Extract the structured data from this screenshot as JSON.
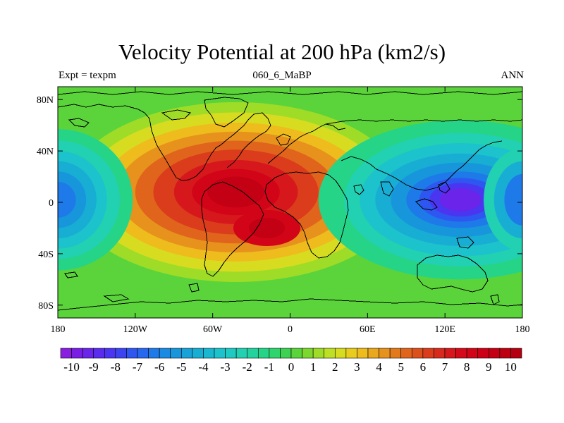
{
  "chart_data": {
    "type": "heatmap",
    "title": "Velocity Potential at 200 hPa (km2/s)",
    "subtitle_left": "Expt = texpm",
    "subtitle_center": "060_6_MaBP",
    "subtitle_right": "ANN",
    "xlim": [
      -180,
      180
    ],
    "ylim": [
      -90,
      90
    ],
    "x_ticks": [
      {
        "value": -180,
        "label": "180"
      },
      {
        "value": -120,
        "label": "120W"
      },
      {
        "value": -60,
        "label": "60W"
      },
      {
        "value": 0,
        "label": "0"
      },
      {
        "value": 60,
        "label": "60E"
      },
      {
        "value": 120,
        "label": "120E"
      },
      {
        "value": 180,
        "label": "180"
      }
    ],
    "y_ticks": [
      {
        "value": 80,
        "label": "80N"
      },
      {
        "value": 40,
        "label": "40N"
      },
      {
        "value": 0,
        "label": "0"
      },
      {
        "value": -40,
        "label": "40S"
      },
      {
        "value": -80,
        "label": "80S"
      }
    ],
    "colorbar": {
      "min": -10.5,
      "max": 10.5,
      "step": 0.5,
      "labels": [
        "-10",
        "-9",
        "-8",
        "-7",
        "-6",
        "-5",
        "-4",
        "-3",
        "-2",
        "-1",
        "0",
        "1",
        "2",
        "3",
        "4",
        "5",
        "6",
        "7",
        "8",
        "9",
        "10"
      ],
      "colors": [
        "#8a1ee0",
        "#7a1ee6",
        "#6a24ea",
        "#5a2cee",
        "#4a36f0",
        "#3c44f2",
        "#2e56f0",
        "#2668ee",
        "#1e7ae8",
        "#1a8ae2",
        "#1896dc",
        "#18a2d8",
        "#18aed4",
        "#1ab8d0",
        "#1cc2cc",
        "#1ecac2",
        "#22d0b2",
        "#24d29e",
        "#26d488",
        "#2ed46c",
        "#3ed252",
        "#5ad43a",
        "#7cd82e",
        "#9edc28",
        "#bee024",
        "#d8dc20",
        "#e8cc1e",
        "#eebc1c",
        "#eaa81c",
        "#e6921c",
        "#e27a1c",
        "#e0641c",
        "#dc501c",
        "#da3c1c",
        "#d82a1c",
        "#d6181c",
        "#d40a1a",
        "#d20418",
        "#cc0016",
        "#c40014",
        "#bc0012",
        "#b40010"
      ]
    },
    "field_description": "Positive centers over Africa/Atlantic, negative center over the western Pacific"
  }
}
